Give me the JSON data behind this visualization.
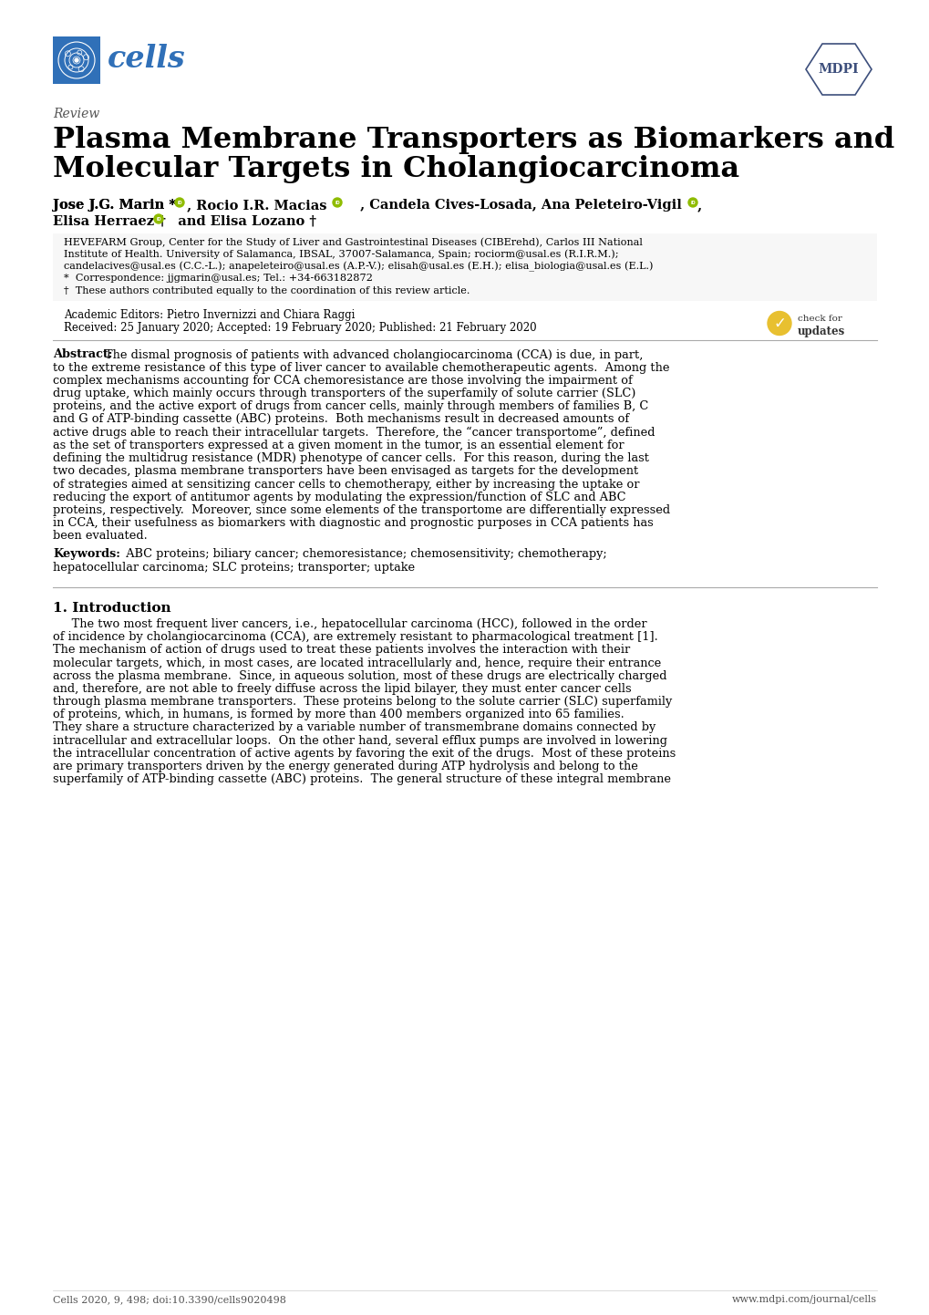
{
  "cells_color": "#3070B8",
  "cells_box_color": "#3070B8",
  "mdpi_color": "#3D4F7C",
  "background_color": "#ffffff",
  "text_color": "#000000",
  "footer_left": "Cells 2020, 9, 498; doi:10.3390/cells9020498",
  "footer_right": "www.mdpi.com/journal/cells",
  "affiliation_lines": [
    "HEVEFARM Group, Center for the Study of Liver and Gastrointestinal Diseases (CIBErehd), Carlos III National",
    "Institute of Health. University of Salamanca, IBSAL, 37007-Salamanca, Spain; rociorm@usal.es (R.I.R.M.);",
    "candelacives@usal.es (C.C.-L.); anapeleteiro@usal.es (A.P.-V.); elisah@usal.es (E.H.); elisa_biologia@usal.es (E.L.)",
    "*  Correspondence: jjgmarin@usal.es; Tel.: +34-663182872",
    "†  These authors contributed equally to the coordination of this review article."
  ],
  "abstract_lines": [
    "The dismal prognosis of patients with advanced cholangiocarcinoma (CCA) is due, in part,",
    "to the extreme resistance of this type of liver cancer to available chemotherapeutic agents.  Among the",
    "complex mechanisms accounting for CCA chemoresistance are those involving the impairment of",
    "drug uptake, which mainly occurs through transporters of the superfamily of solute carrier (SLC)",
    "proteins, and the active export of drugs from cancer cells, mainly through members of families B, C",
    "and G of ATP-binding cassette (ABC) proteins.  Both mechanisms result in decreased amounts of",
    "active drugs able to reach their intracellular targets.  Therefore, the “cancer transportome”, defined",
    "as the set of transporters expressed at a given moment in the tumor, is an essential element for",
    "defining the multidrug resistance (MDR) phenotype of cancer cells.  For this reason, during the last",
    "two decades, plasma membrane transporters have been envisaged as targets for the development",
    "of strategies aimed at sensitizing cancer cells to chemotherapy, either by increasing the uptake or",
    "reducing the export of antitumor agents by modulating the expression/function of SLC and ABC",
    "proteins, respectively.  Moreover, since some elements of the transportome are differentially expressed",
    "in CCA, their usefulness as biomarkers with diagnostic and prognostic purposes in CCA patients has",
    "been evaluated."
  ],
  "keywords_line1": "  ABC proteins; biliary cancer; chemoresistance; chemosensitivity; chemotherapy;",
  "keywords_line2": "hepatocellular carcinoma; SLC proteins; transporter; uptake",
  "intro_lines": [
    "     The two most frequent liver cancers, i.e., hepatocellular carcinoma (HCC), followed in the order",
    "of incidence by cholangiocarcinoma (CCA), are extremely resistant to pharmacological treatment [1].",
    "The mechanism of action of drugs used to treat these patients involves the interaction with their",
    "molecular targets, which, in most cases, are located intracellularly and, hence, require their entrance",
    "across the plasma membrane.  Since, in aqueous solution, most of these drugs are electrically charged",
    "and, therefore, are not able to freely diffuse across the lipid bilayer, they must enter cancer cells",
    "through plasma membrane transporters.  These proteins belong to the solute carrier (SLC) superfamily",
    "of proteins, which, in humans, is formed by more than 400 members organized into 65 families.",
    "They share a structure characterized by a variable number of transmembrane domains connected by",
    "intracellular and extracellular loops.  On the other hand, several efflux pumps are involved in lowering",
    "the intracellular concentration of active agents by favoring the exit of the drugs.  Most of these proteins",
    "are primary transporters driven by the energy generated during ATP hydrolysis and belong to the",
    "superfamily of ATP-binding cassette (ABC) proteins.  The general structure of these integral membrane"
  ]
}
